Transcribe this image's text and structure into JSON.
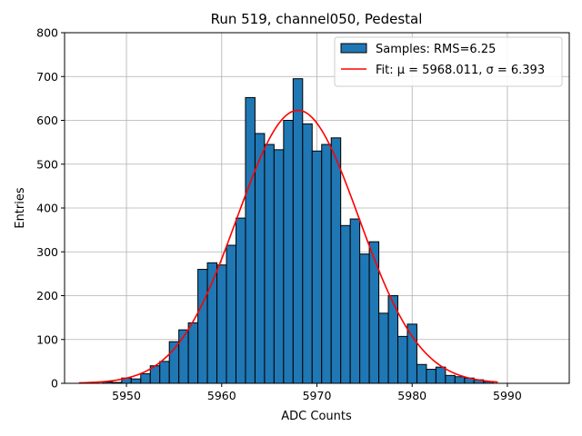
{
  "chart_data": {
    "type": "bar",
    "title": "Run 519, channel050, Pedestal",
    "xlabel": "ADC Counts",
    "ylabel": "Entries",
    "xlim": [
      5943.5,
      5996.5
    ],
    "ylim": [
      0,
      800
    ],
    "xticks": [
      5950,
      5960,
      5970,
      5980,
      5990
    ],
    "yticks": [
      0,
      100,
      200,
      300,
      400,
      500,
      600,
      700,
      800
    ],
    "grid": true,
    "legend_position": "top-right",
    "colors": {
      "bars": "#1f77b4",
      "bar_edge": "#000000",
      "fit": "#ff0000",
      "grid": "#b0b0b0"
    },
    "series": [
      {
        "name": "Samples: RMS=6.25",
        "kind": "histogram",
        "bin_width": 1,
        "x": [
          5948,
          5949,
          5950,
          5951,
          5952,
          5953,
          5954,
          5955,
          5956,
          5957,
          5958,
          5959,
          5960,
          5961,
          5962,
          5963,
          5964,
          5965,
          5966,
          5967,
          5968,
          5969,
          5970,
          5971,
          5972,
          5973,
          5974,
          5975,
          5976,
          5977,
          5978,
          5979,
          5980,
          5981,
          5982,
          5983,
          5984,
          5985,
          5986,
          5987,
          5988
        ],
        "values": [
          3,
          2,
          12,
          10,
          22,
          40,
          50,
          95,
          122,
          138,
          260,
          275,
          270,
          315,
          377,
          652,
          570,
          545,
          533,
          600,
          695,
          592,
          530,
          545,
          560,
          360,
          375,
          295,
          323,
          160,
          200,
          107,
          135,
          43,
          32,
          37,
          18,
          15,
          12,
          8,
          4
        ]
      },
      {
        "name": "Fit: μ = 5968.011, σ = 6.393",
        "kind": "gaussian",
        "mu": 5968.011,
        "sigma": 6.393,
        "amplitude": 623,
        "x_range": [
          5945,
          5989
        ]
      }
    ]
  }
}
